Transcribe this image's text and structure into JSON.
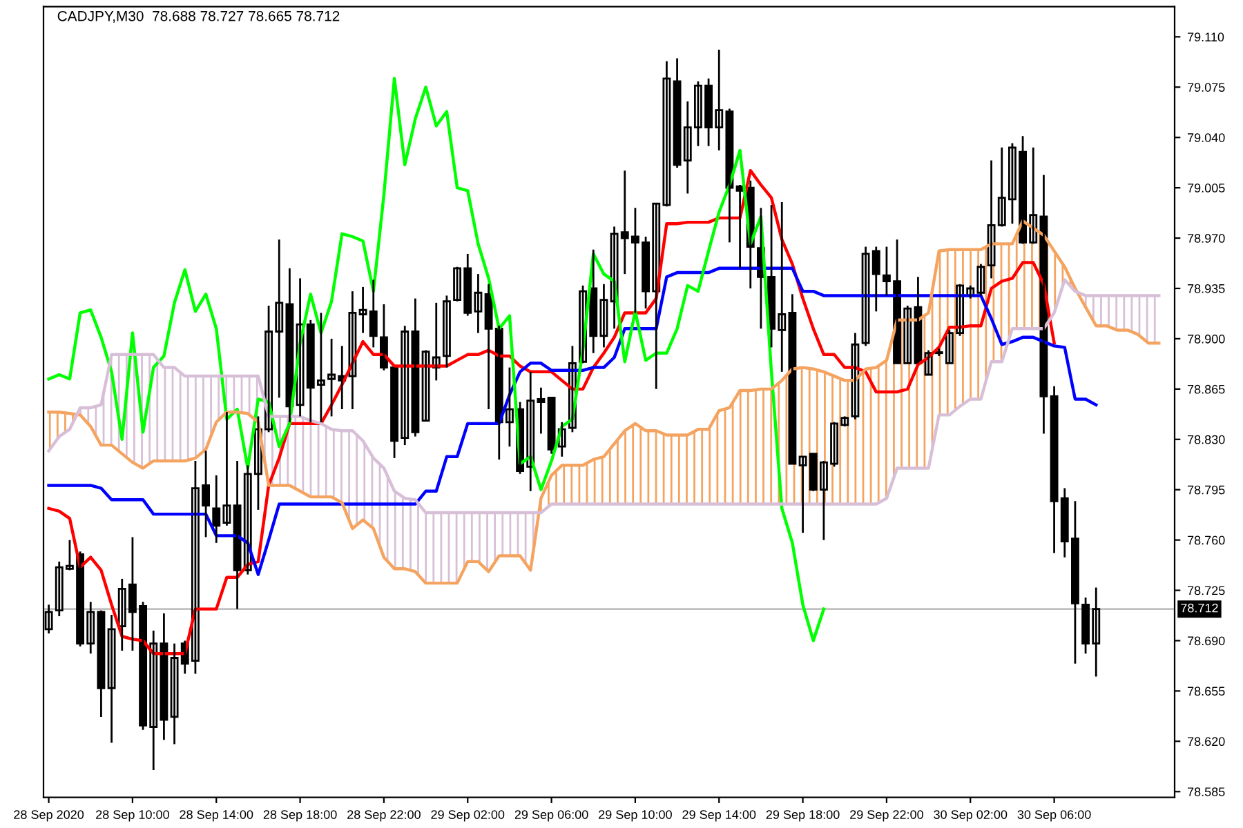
{
  "chart_data": {
    "type": "candlestick",
    "title": "CADJPY,M30  78.688 78.727 78.665 78.712",
    "categories": [
      "28 Sep 2020",
      null,
      null,
      null,
      null,
      null,
      null,
      null,
      "28 Sep 10:00",
      null,
      null,
      null,
      null,
      null,
      null,
      null,
      "28 Sep 14:00",
      null,
      null,
      null,
      null,
      null,
      null,
      null,
      "28 Sep 18:00",
      null,
      null,
      null,
      null,
      null,
      null,
      null,
      "28 Sep 22:00",
      null,
      null,
      null,
      null,
      null,
      null,
      null,
      "29 Sep 02:00",
      null,
      null,
      null,
      null,
      null,
      null,
      null,
      "29 Sep 06:00",
      null,
      null,
      null,
      null,
      null,
      null,
      null,
      "29 Sep 10:00",
      null,
      null,
      null,
      null,
      null,
      null,
      null,
      "29 Sep 14:00",
      null,
      null,
      null,
      null,
      null,
      null,
      null,
      "29 Sep 18:00",
      null,
      null,
      null,
      null,
      null,
      null,
      null,
      "29 Sep 22:00",
      null,
      null,
      null,
      null,
      null,
      null,
      null,
      "30 Sep 02:00",
      null,
      null,
      null,
      null,
      null,
      null,
      null,
      "30 Sep 06:00",
      null,
      null,
      null,
      null,
      null,
      null,
      null,
      null,
      null,
      null
    ],
    "ohlc": [
      [
        78.698,
        78.715,
        78.695,
        78.71
      ],
      [
        78.711,
        78.745,
        78.707,
        78.741
      ],
      [
        78.74,
        78.76,
        78.739,
        78.742
      ],
      [
        78.75,
        78.752,
        78.686,
        78.688
      ],
      [
        78.688,
        78.717,
        78.681,
        78.71
      ],
      [
        78.71,
        78.711,
        78.637,
        78.657
      ],
      [
        78.657,
        78.708,
        78.619,
        78.698
      ],
      [
        78.7,
        78.733,
        78.683,
        78.726
      ],
      [
        78.729,
        78.762,
        78.683,
        78.71
      ],
      [
        78.714,
        78.717,
        78.628,
        78.631
      ],
      [
        78.63,
        78.697,
        78.6,
        78.688
      ],
      [
        78.688,
        78.709,
        78.621,
        78.635
      ],
      [
        78.637,
        78.688,
        78.618,
        78.678
      ],
      [
        78.688,
        78.69,
        78.667,
        78.674
      ],
      [
        78.676,
        78.815,
        78.667,
        78.796
      ],
      [
        78.798,
        78.822,
        78.762,
        78.784
      ],
      [
        78.782,
        78.805,
        78.758,
        78.77
      ],
      [
        78.772,
        78.849,
        78.77,
        78.784
      ],
      [
        78.784,
        78.815,
        78.712,
        78.739
      ],
      [
        78.739,
        78.812,
        78.736,
        78.806
      ],
      [
        78.806,
        78.846,
        78.781,
        78.837
      ],
      [
        78.837,
        78.923,
        78.835,
        78.905
      ],
      [
        78.905,
        78.969,
        78.859,
        78.925
      ],
      [
        78.924,
        78.949,
        78.842,
        78.853
      ],
      [
        78.854,
        78.942,
        78.846,
        78.91
      ],
      [
        78.91,
        78.913,
        78.842,
        78.866
      ],
      [
        78.868,
        78.918,
        78.842,
        78.871
      ],
      [
        78.872,
        78.9,
        78.846,
        78.875
      ],
      [
        78.874,
        78.895,
        78.851,
        78.871
      ],
      [
        78.874,
        78.933,
        78.851,
        78.918
      ],
      [
        78.917,
        78.936,
        78.904,
        78.92
      ],
      [
        78.919,
        78.941,
        78.894,
        78.902
      ],
      [
        78.901,
        78.924,
        78.878,
        78.88
      ],
      [
        78.88,
        78.88,
        78.817,
        78.829
      ],
      [
        78.831,
        78.909,
        78.826,
        78.905
      ],
      [
        78.905,
        78.928,
        78.832,
        78.835
      ],
      [
        78.843,
        78.892,
        78.843,
        78.891
      ],
      [
        78.88,
        78.925,
        78.871,
        78.887
      ],
      [
        78.888,
        78.93,
        78.88,
        78.926
      ],
      [
        78.927,
        78.95,
        78.926,
        78.949
      ],
      [
        78.949,
        78.959,
        78.916,
        78.918
      ],
      [
        78.919,
        78.945,
        78.904,
        78.932
      ],
      [
        78.931,
        78.938,
        78.851,
        78.907
      ],
      [
        78.907,
        78.909,
        78.816,
        78.842
      ],
      [
        78.842,
        78.88,
        78.825,
        78.851
      ],
      [
        78.851,
        78.856,
        78.806,
        78.808
      ],
      [
        78.811,
        78.877,
        78.794,
        78.857
      ],
      [
        78.858,
        78.866,
        78.834,
        78.856
      ],
      [
        78.859,
        78.859,
        78.82,
        78.823
      ],
      [
        78.825,
        78.842,
        78.818,
        78.837
      ],
      [
        78.838,
        78.895,
        78.835,
        78.883
      ],
      [
        78.884,
        78.937,
        78.883,
        78.933
      ],
      [
        78.935,
        78.962,
        78.89,
        78.902
      ],
      [
        78.902,
        78.938,
        78.894,
        78.927
      ],
      [
        78.926,
        78.978,
        78.907,
        78.973
      ],
      [
        78.974,
        79.017,
        78.945,
        78.97
      ],
      [
        78.971,
        78.991,
        78.918,
        78.967
      ],
      [
        78.967,
        78.971,
        78.921,
        78.933
      ],
      [
        78.933,
        78.994,
        78.865,
        78.994
      ],
      [
        78.993,
        79.093,
        78.992,
        79.081
      ],
      [
        79.079,
        79.095,
        79.019,
        79.021
      ],
      [
        79.024,
        79.065,
        79.001,
        79.047
      ],
      [
        79.047,
        79.079,
        79.034,
        79.076
      ],
      [
        79.076,
        79.081,
        79.034,
        79.047
      ],
      [
        79.047,
        79.101,
        79.031,
        79.059
      ],
      [
        79.058,
        79.06,
        78.967,
        79.005
      ],
      [
        79.006,
        79.007,
        78.949,
        79.003
      ],
      [
        79.005,
        79.01,
        78.935,
        78.964
      ],
      [
        78.963,
        78.991,
        78.907,
        78.943
      ],
      [
        78.943,
        78.993,
        78.894,
        78.907
      ],
      [
        78.906,
        78.995,
        78.877,
        78.917
      ],
      [
        78.918,
        78.931,
        78.813,
        78.813
      ],
      [
        78.812,
        78.818,
        78.765,
        78.818
      ],
      [
        78.82,
        78.82,
        78.794,
        78.795
      ],
      [
        78.795,
        78.815,
        78.76,
        78.814
      ],
      [
        78.813,
        78.842,
        78.811,
        78.841
      ],
      [
        78.84,
        78.846,
        78.839,
        78.845
      ],
      [
        78.846,
        78.904,
        78.844,
        78.896
      ],
      [
        78.897,
        78.964,
        78.895,
        78.959
      ],
      [
        78.961,
        78.964,
        78.919,
        78.945
      ],
      [
        78.944,
        78.964,
        78.93,
        78.94
      ],
      [
        78.94,
        78.969,
        78.883,
        78.883
      ],
      [
        78.883,
        78.923,
        78.883,
        78.921
      ],
      [
        78.922,
        78.943,
        78.883,
        78.883
      ],
      [
        78.875,
        78.892,
        78.875,
        78.89
      ],
      [
        78.89,
        78.893,
        78.888,
        78.89
      ],
      [
        78.883,
        78.906,
        78.883,
        78.904
      ],
      [
        78.904,
        78.938,
        78.902,
        78.937
      ],
      [
        78.93,
        78.937,
        78.928,
        78.935
      ],
      [
        78.932,
        78.952,
        78.93,
        78.95
      ],
      [
        78.951,
        79.024,
        78.942,
        78.979
      ],
      [
        78.979,
        79.033,
        78.978,
        78.998
      ],
      [
        78.997,
        79.036,
        78.98,
        79.033
      ],
      [
        79.03,
        79.041,
        78.966,
        78.967
      ],
      [
        78.967,
        79.033,
        78.966,
        78.986
      ],
      [
        78.985,
        79.014,
        78.834,
        78.86
      ],
      [
        78.86,
        78.867,
        78.751,
        78.787
      ],
      [
        78.789,
        78.796,
        78.748,
        78.759
      ],
      [
        78.761,
        78.787,
        78.674,
        78.716
      ],
      [
        78.715,
        78.72,
        78.681,
        78.688
      ],
      [
        78.688,
        78.727,
        78.665,
        78.712
      ],
      null,
      null,
      null,
      null,
      null,
      null
    ],
    "series": [
      {
        "type": "line",
        "color": "#ff0000",
        "values": [
          78.782,
          78.78,
          78.775,
          78.741,
          78.748,
          78.739,
          78.715,
          78.693,
          78.691,
          78.69,
          78.681,
          78.681,
          78.681,
          78.681,
          78.712,
          78.712,
          78.712,
          78.734,
          78.734,
          78.743,
          78.745,
          78.798,
          78.817,
          78.841,
          78.841,
          78.841,
          78.841,
          78.854,
          78.868,
          78.883,
          78.898,
          78.889,
          78.889,
          78.881,
          78.881,
          78.881,
          78.881,
          78.881,
          78.881,
          78.885,
          78.889,
          78.889,
          78.892,
          78.888,
          78.888,
          78.881,
          78.877,
          78.877,
          78.877,
          78.871,
          78.865,
          78.865,
          78.88,
          78.89,
          78.901,
          78.918,
          78.918,
          78.918,
          78.928,
          78.98,
          78.98,
          78.981,
          78.981,
          78.981,
          78.984,
          78.984,
          78.984,
          79.017,
          79.007,
          78.998,
          78.969,
          78.952,
          78.928,
          78.907,
          78.889,
          78.889,
          78.88,
          78.88,
          78.877,
          78.863,
          78.863,
          78.863,
          78.865,
          78.882,
          78.887,
          78.894,
          78.908,
          78.908,
          78.909,
          78.909,
          78.935,
          78.94,
          78.942,
          78.953,
          78.953,
          78.938,
          78.897,
          null,
          null,
          null,
          null,
          null,
          null,
          null,
          null,
          null,
          null
        ]
      },
      {
        "type": "line",
        "color": "#0000ff",
        "values": [
          78.798,
          78.798,
          78.798,
          78.798,
          78.798,
          78.796,
          78.788,
          78.788,
          78.788,
          78.788,
          78.778,
          78.778,
          78.778,
          78.778,
          78.778,
          78.778,
          78.763,
          78.763,
          78.763,
          78.758,
          78.736,
          78.76,
          78.785,
          78.785,
          78.785,
          78.785,
          78.785,
          78.785,
          78.785,
          78.785,
          78.785,
          78.785,
          78.785,
          78.785,
          78.785,
          78.785,
          78.794,
          78.794,
          78.818,
          78.818,
          78.841,
          78.841,
          78.841,
          78.841,
          78.861,
          78.877,
          78.883,
          78.883,
          78.878,
          78.878,
          78.878,
          78.878,
          78.88,
          78.88,
          78.887,
          78.907,
          78.907,
          78.907,
          78.907,
          78.943,
          78.946,
          78.946,
          78.946,
          78.946,
          78.949,
          78.949,
          78.949,
          78.949,
          78.949,
          78.949,
          78.949,
          78.949,
          78.933,
          78.933,
          78.93,
          78.93,
          78.93,
          78.93,
          78.93,
          78.93,
          78.93,
          78.93,
          78.93,
          78.93,
          78.93,
          78.93,
          78.93,
          78.93,
          78.93,
          78.93,
          78.914,
          78.896,
          78.898,
          78.901,
          78.901,
          78.898,
          78.895,
          78.894,
          78.858,
          78.858,
          78.854,
          null,
          null,
          null,
          null,
          null,
          null
        ]
      },
      {
        "type": "line",
        "color": "#00ff00",
        "values": [
          78.872,
          78.875,
          78.872,
          78.918,
          78.92,
          78.901,
          78.877,
          78.83,
          78.904,
          78.835,
          78.88,
          78.888,
          78.925,
          78.948,
          78.919,
          78.931,
          78.907,
          78.844,
          78.851,
          78.81,
          78.858,
          78.856,
          78.825,
          78.841,
          78.897,
          78.931,
          78.904,
          78.926,
          78.973,
          78.971,
          78.968,
          78.933,
          79.0,
          79.081,
          79.021,
          79.053,
          79.075,
          79.048,
          79.058,
          79.005,
          79.003,
          78.966,
          78.942,
          78.907,
          78.916,
          78.813,
          78.818,
          78.795,
          78.815,
          78.839,
          78.844,
          78.892,
          78.959,
          78.945,
          78.94,
          78.884,
          78.919,
          78.885,
          78.89,
          78.89,
          78.907,
          78.937,
          78.933,
          78.961,
          78.988,
          79.007,
          79.031,
          78.966,
          78.985,
          78.877,
          78.782,
          78.758,
          78.715,
          78.69,
          78.712,
          null,
          null,
          null,
          null,
          null,
          null,
          null,
          null,
          null,
          null,
          null,
          null,
          null,
          null,
          null,
          null,
          null,
          null,
          null,
          null,
          null,
          null,
          null,
          null,
          null,
          null,
          null,
          null,
          null,
          null,
          null,
          null
        ]
      },
      {
        "type": "line",
        "color": "#f4a460",
        "values": [
          78.849,
          78.849,
          78.848,
          78.847,
          78.839,
          78.826,
          78.826,
          78.82,
          78.814,
          78.81,
          78.815,
          78.815,
          78.815,
          78.815,
          78.817,
          78.823,
          78.842,
          78.849,
          78.849,
          78.848,
          78.842,
          78.798,
          78.798,
          78.798,
          78.794,
          78.79,
          78.79,
          78.79,
          78.786,
          78.768,
          78.774,
          78.768,
          78.748,
          78.74,
          78.74,
          78.738,
          78.73,
          78.73,
          78.73,
          78.73,
          78.745,
          78.745,
          78.738,
          78.749,
          78.749,
          78.749,
          78.739,
          78.789,
          78.805,
          78.812,
          78.812,
          78.812,
          78.816,
          78.818,
          78.827,
          78.836,
          78.841,
          78.836,
          78.836,
          78.833,
          78.833,
          78.833,
          78.837,
          78.837,
          78.85,
          78.852,
          78.864,
          78.864,
          78.865,
          78.865,
          78.871,
          78.879,
          78.88,
          78.879,
          78.877,
          78.874,
          78.871,
          78.871,
          78.879,
          78.88,
          78.885,
          78.913,
          78.913,
          78.913,
          78.918,
          78.961,
          78.962,
          78.962,
          78.962,
          78.962,
          78.966,
          78.966,
          78.966,
          78.982,
          78.977,
          78.972,
          78.961,
          78.95,
          78.935,
          78.922,
          78.909,
          78.909,
          78.906,
          78.906,
          78.903,
          78.897,
          78.897
        ]
      },
      {
        "type": "line",
        "color": "#d8bfd8",
        "values": [
          78.822,
          78.832,
          78.837,
          78.852,
          78.852,
          78.854,
          78.889,
          78.889,
          78.889,
          78.889,
          78.889,
          78.88,
          78.88,
          78.874,
          78.874,
          78.874,
          78.874,
          78.874,
          78.874,
          78.874,
          78.874,
          78.846,
          78.846,
          78.846,
          78.846,
          78.843,
          78.841,
          78.837,
          78.836,
          78.836,
          78.829,
          78.817,
          78.81,
          78.794,
          78.789,
          78.788,
          78.779,
          78.779,
          78.779,
          78.779,
          78.779,
          78.779,
          78.779,
          78.779,
          78.779,
          78.779,
          78.779,
          78.779,
          78.785,
          78.785,
          78.785,
          78.785,
          78.785,
          78.785,
          78.785,
          78.785,
          78.785,
          78.785,
          78.785,
          78.785,
          78.785,
          78.785,
          78.785,
          78.785,
          78.785,
          78.785,
          78.785,
          78.785,
          78.785,
          78.785,
          78.785,
          78.785,
          78.785,
          78.785,
          78.785,
          78.785,
          78.785,
          78.785,
          78.785,
          78.785,
          78.789,
          78.81,
          78.81,
          78.81,
          78.81,
          78.847,
          78.847,
          78.853,
          78.858,
          78.858,
          78.884,
          78.884,
          78.907,
          78.907,
          78.907,
          78.907,
          78.918,
          78.941,
          78.933,
          78.93,
          78.93,
          78.93,
          78.93,
          78.93,
          78.93,
          78.93,
          78.93
        ]
      }
    ],
    "ylim": [
      78.581,
      79.131
    ],
    "yticks": [
      78.585,
      {
        "value": 78.62,
        "label": "78.620"
      },
      78.655,
      {
        "value": 78.69,
        "label": "78.690"
      },
      78.725,
      {
        "value": 78.76,
        "label": "78.760"
      },
      78.795,
      {
        "value": 78.83,
        "label": "78.830"
      },
      78.865,
      {
        "value": 78.9,
        "label": "78.900"
      },
      78.935,
      {
        "value": 78.97,
        "label": "78.970"
      },
      79.005,
      {
        "value": 79.04,
        "label": "79.040"
      },
      79.075,
      {
        "value": 79.11,
        "label": "79.110"
      }
    ],
    "ref_lines": [
      {
        "axis": "y",
        "value": 78.712,
        "label": "78.712",
        "color": "#c0c0c0"
      }
    ]
  }
}
